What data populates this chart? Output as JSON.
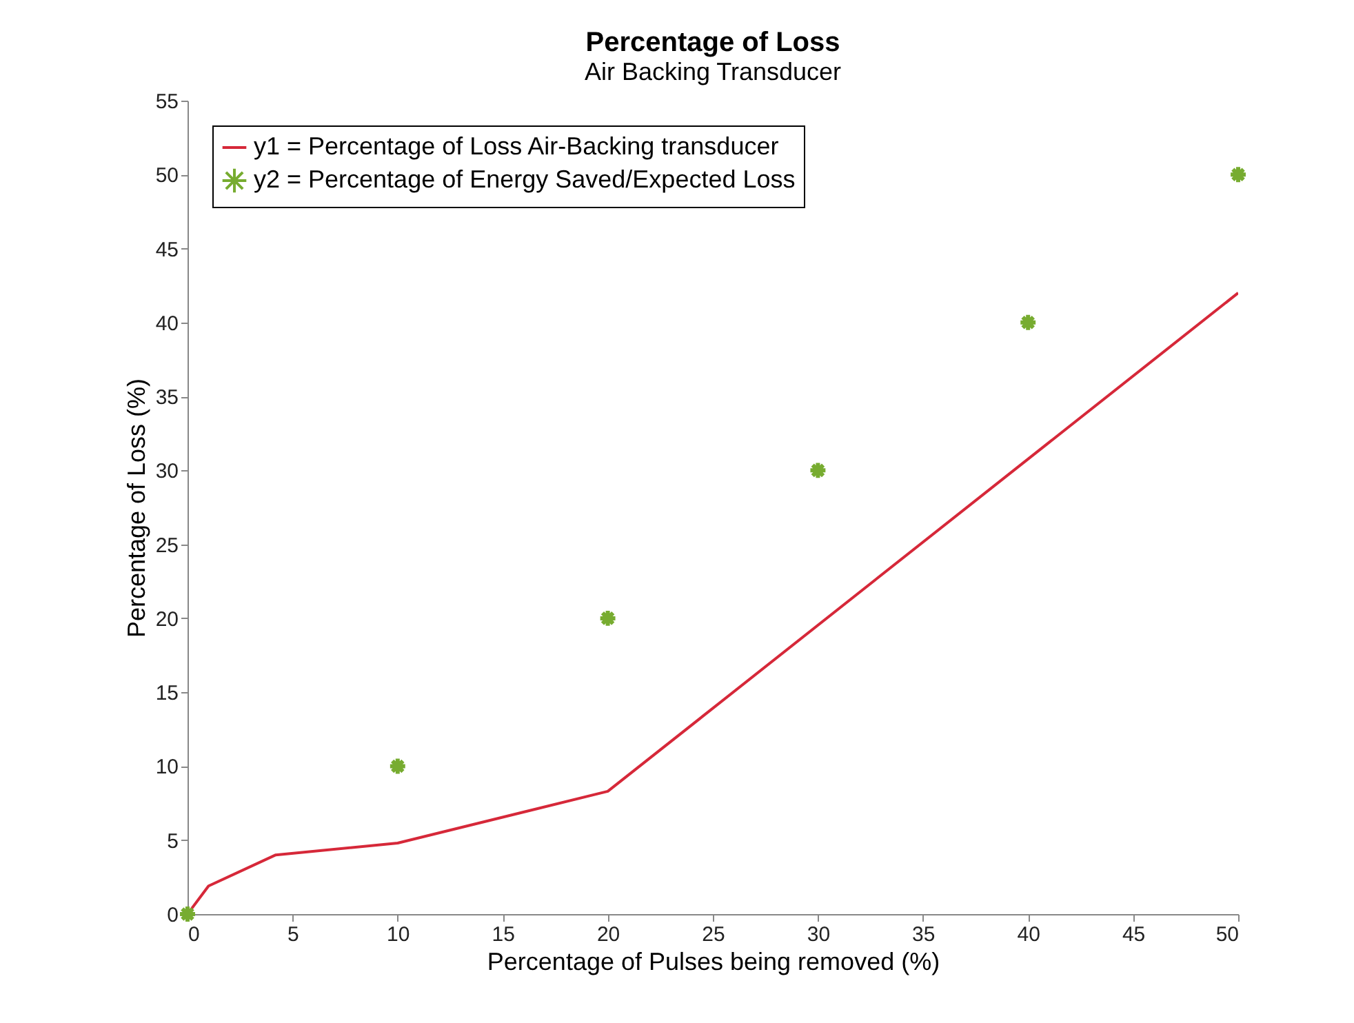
{
  "chart_data": {
    "type": "line",
    "title": "Percentage of Loss",
    "subtitle": "Air Backing Transducer",
    "xlabel": "Percentage of Pulses being removed (%)",
    "ylabel": "Percentage of Loss (%)",
    "xlim": [
      0,
      50
    ],
    "xticks": [
      0,
      5,
      10,
      15,
      20,
      25,
      30,
      35,
      40,
      45,
      50
    ],
    "ylim": [
      0,
      55
    ],
    "yticks": [
      0,
      5,
      10,
      15,
      20,
      25,
      30,
      35,
      40,
      45,
      50,
      55
    ],
    "grid": false,
    "legend": "top left",
    "series": [
      {
        "name": "y1 = Percentage of Loss Air-Backing transducer",
        "type": "line",
        "color": "#d62839",
        "marker": "none",
        "x": [
          0,
          1,
          4.2,
          10,
          20,
          50
        ],
        "values": [
          0,
          1.9,
          4.0,
          4.8,
          8.3,
          42
        ]
      },
      {
        "name": "y2 = Percentage of Energy Saved/Expected Loss",
        "type": "scatter",
        "color": "#77ac30",
        "marker": "cross",
        "x": [
          0,
          10,
          20,
          30,
          40,
          50
        ],
        "values": [
          0,
          10,
          20,
          30,
          40,
          50
        ]
      }
    ]
  }
}
